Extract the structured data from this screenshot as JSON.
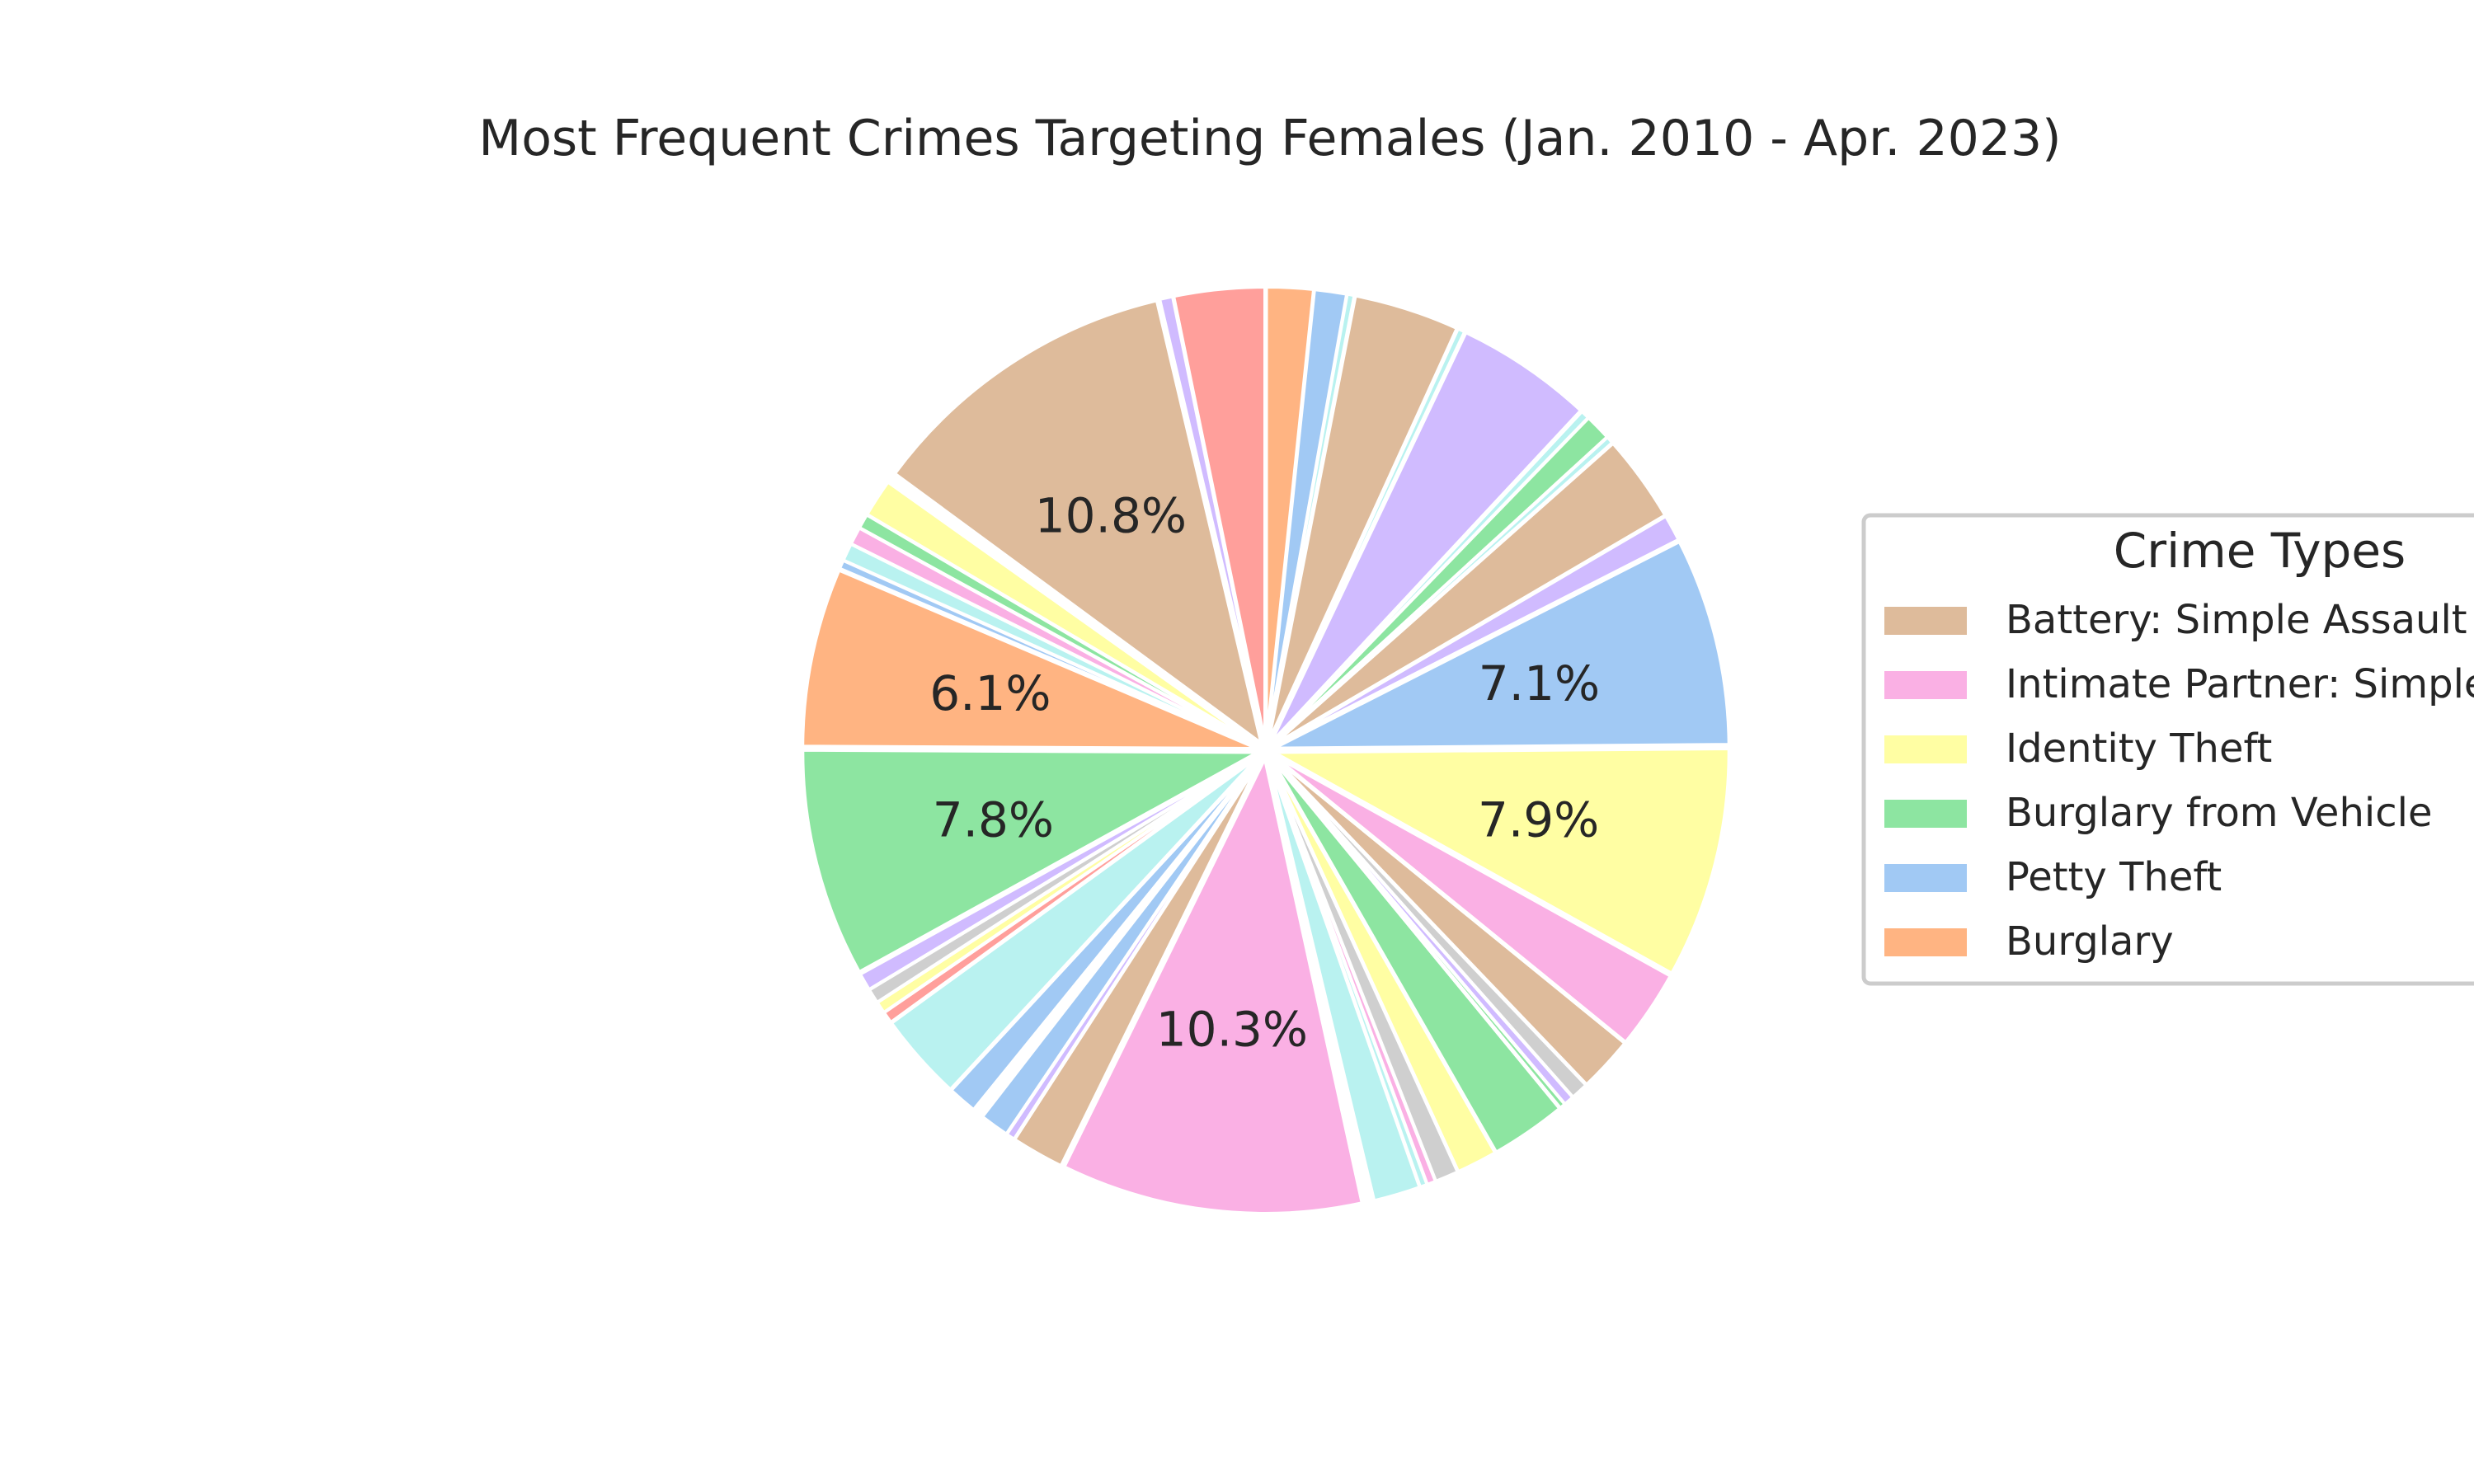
{
  "chart_data": {
    "type": "pie",
    "title": "Most Frequent Crimes Targeting Females (Jan. 2010 - Apr. 2023)",
    "legend": {
      "title": "Crime Types",
      "placement": "right",
      "entries": [
        {
          "label": "Battery: Simple Assault",
          "color": "#debb9b"
        },
        {
          "label": "Intimate Partner: Simple",
          "color": "#fab0e4"
        },
        {
          "label": "Identity Theft",
          "color": "#fffea3"
        },
        {
          "label": "Burglary from Vehicle",
          "color": "#8de5a1"
        },
        {
          "label": "Petty Theft",
          "color": "#a1c9f4"
        },
        {
          "label": "Burglary",
          "color": "#ffb482"
        }
      ]
    },
    "slices": [
      {
        "value": 1.6,
        "color": "#ffb482"
      },
      {
        "value": 1.1,
        "color": "#a1c9f4"
      },
      {
        "value": 0.25,
        "color": "#b9f2f0"
      },
      {
        "value": 3.6,
        "color": "#debb9b"
      },
      {
        "value": 0.25,
        "color": "#b9f2f0"
      },
      {
        "value": 4.7,
        "color": "#d0bbff"
      },
      {
        "value": 0.3,
        "color": "#b9f2f0"
      },
      {
        "value": 0.9,
        "color": "#8de5a1"
      },
      {
        "value": 0.25,
        "color": "#b9f2f0"
      },
      {
        "value": 3.0,
        "color": "#debb9b"
      },
      {
        "value": 0.9,
        "color": "#d0bbff"
      },
      {
        "value": 7.1,
        "color": "#a1c9f4",
        "label": "7.1%"
      },
      {
        "value": 7.9,
        "color": "#fffea3",
        "label": "7.9%"
      },
      {
        "value": 2.7,
        "color": "#fab0e4"
      },
      {
        "value": 1.9,
        "color": "#debb9b"
      },
      {
        "value": 0.6,
        "color": "#cfcfcf"
      },
      {
        "value": 0.35,
        "color": "#d0bbff"
      },
      {
        "value": 0.2,
        "color": "#8de5a1"
      },
      {
        "value": 2.6,
        "color": "#8de5a1"
      },
      {
        "value": 1.4,
        "color": "#fffea3"
      },
      {
        "value": 0.8,
        "color": "#cfcfcf"
      },
      {
        "value": 0.3,
        "color": "#fab0e4"
      },
      {
        "value": 0.25,
        "color": "#b9f2f0"
      },
      {
        "value": 1.6,
        "color": "#b9f2f0"
      },
      {
        "value": 0.3,
        "color": "#ffffff"
      },
      {
        "value": 10.3,
        "color": "#fab0e4",
        "label": "10.3%"
      },
      {
        "value": 1.8,
        "color": "#debb9b"
      },
      {
        "value": 0.3,
        "color": "#d0bbff"
      },
      {
        "value": 1.0,
        "color": "#a1c9f4"
      },
      {
        "value": 0.35,
        "color": "#ffffff"
      },
      {
        "value": 1.0,
        "color": "#a1c9f4"
      },
      {
        "value": 3.0,
        "color": "#b9f2f0"
      },
      {
        "value": 0.4,
        "color": "#ff9f9b"
      },
      {
        "value": 0.4,
        "color": "#fffea3"
      },
      {
        "value": 0.5,
        "color": "#cfcfcf"
      },
      {
        "value": 0.6,
        "color": "#d0bbff"
      },
      {
        "value": 7.8,
        "color": "#8de5a1",
        "label": "7.8%"
      },
      {
        "value": 6.1,
        "color": "#ffb482",
        "label": "6.1%"
      },
      {
        "value": 0.3,
        "color": "#a1c9f4"
      },
      {
        "value": 0.6,
        "color": "#b9f2f0"
      },
      {
        "value": 0.6,
        "color": "#fab0e4"
      },
      {
        "value": 0.5,
        "color": "#8de5a1"
      },
      {
        "value": 1.3,
        "color": "#fffea3"
      },
      {
        "value": 0.25,
        "color": "#ffffff"
      },
      {
        "value": 10.8,
        "color": "#debb9b",
        "label": "10.8%"
      },
      {
        "value": 0.45,
        "color": "#d0bbff"
      },
      {
        "value": 3.1,
        "color": "#ff9f9b"
      }
    ]
  }
}
